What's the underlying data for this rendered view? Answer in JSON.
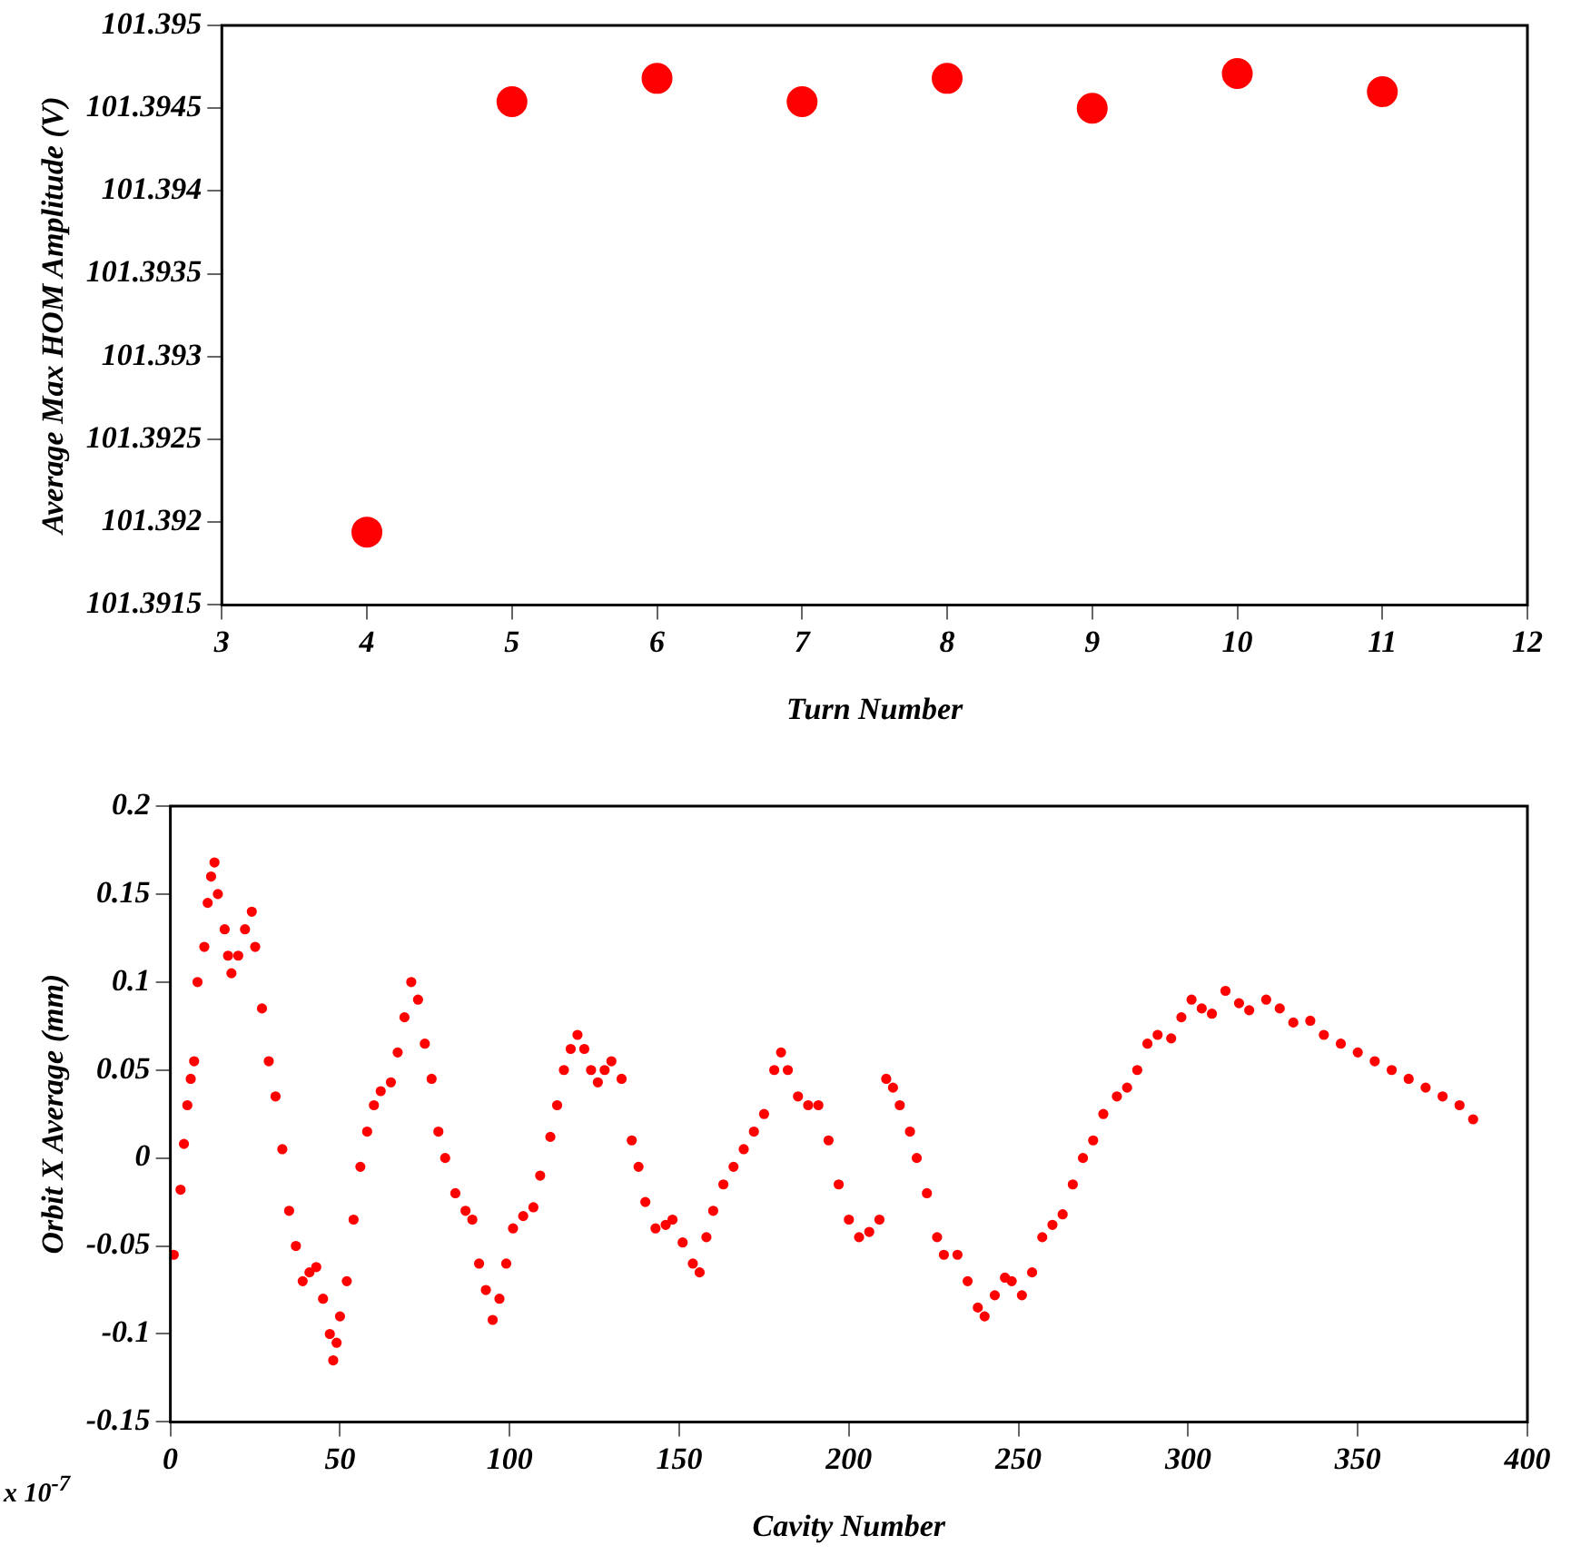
{
  "chart_data": [
    {
      "type": "scatter",
      "xlabel": "Turn Number",
      "ylabel": "Average Max HOM Amplitude (V)",
      "marker": "circle",
      "grid": false,
      "legend": false,
      "xlim": [
        3,
        12
      ],
      "xticks": [
        3,
        4,
        5,
        6,
        7,
        8,
        9,
        10,
        11,
        12
      ],
      "ylim": [
        101.3915,
        101.395
      ],
      "yticks": [
        101.3915,
        101.392,
        101.3925,
        101.393,
        101.3935,
        101.394,
        101.3945,
        101.395
      ],
      "series": [
        {
          "color": "#ff0000",
          "x": [
            4,
            5,
            6,
            7,
            8,
            9,
            10,
            11
          ],
          "values": [
            101.39194,
            101.39454,
            101.39468,
            101.39454,
            101.39468,
            101.3945,
            101.39471,
            101.3946
          ]
        }
      ]
    },
    {
      "type": "scatter",
      "xlabel": "Cavity Number",
      "ylabel": "Orbit X Average (mm)",
      "marker": "circle",
      "grid": false,
      "legend": false,
      "annotations": [
        "x 10$^{-7}$"
      ],
      "xlim": [
        0,
        400
      ],
      "xticks": [
        0,
        50,
        100,
        150,
        200,
        250,
        300,
        350,
        400
      ],
      "ylim": [
        -0.15,
        0.2
      ],
      "yticks": [
        -0.15,
        -0.1,
        -0.05,
        0,
        0.05,
        0.1,
        0.15,
        0.2
      ],
      "series": [
        {
          "color": "#ff0000",
          "x": [
            1,
            3,
            4,
            5,
            6,
            7,
            8,
            10,
            11,
            12,
            13,
            14,
            16,
            17,
            18,
            20,
            22,
            24,
            25,
            27,
            29,
            31,
            33,
            35,
            37,
            39,
            41,
            43,
            45,
            47,
            48,
            49,
            50,
            52,
            54,
            56,
            58,
            60,
            62,
            65,
            67,
            69,
            71,
            73,
            75,
            77,
            79,
            81,
            84,
            87,
            89,
            91,
            93,
            95,
            97,
            99,
            101,
            104,
            107,
            109,
            112,
            114,
            116,
            118,
            120,
            122,
            124,
            126,
            128,
            130,
            133,
            136,
            138,
            140,
            143,
            146,
            148,
            151,
            154,
            156,
            158,
            160,
            163,
            166,
            169,
            172,
            175,
            178,
            180,
            182,
            185,
            188,
            191,
            194,
            197,
            200,
            203,
            206,
            209,
            211,
            213,
            215,
            218,
            220,
            223,
            226,
            228,
            232,
            235,
            238,
            240,
            243,
            246,
            248,
            251,
            254,
            257,
            260,
            263,
            266,
            269,
            272,
            275,
            279,
            282,
            285,
            288,
            291,
            295,
            298,
            301,
            304,
            307,
            311,
            315,
            318,
            323,
            327,
            331,
            336,
            340,
            345,
            350,
            355,
            360,
            365,
            370,
            375,
            380,
            384
          ],
          "values": [
            -0.055,
            -0.018,
            0.008,
            0.03,
            0.045,
            0.055,
            0.1,
            0.12,
            0.145,
            0.16,
            0.168,
            0.15,
            0.13,
            0.115,
            0.105,
            0.115,
            0.13,
            0.14,
            0.12,
            0.085,
            0.055,
            0.035,
            0.005,
            -0.03,
            -0.05,
            -0.07,
            -0.065,
            -0.062,
            -0.08,
            -0.1,
            -0.115,
            -0.105,
            -0.09,
            -0.07,
            -0.035,
            -0.005,
            0.015,
            0.03,
            0.038,
            0.043,
            0.06,
            0.08,
            0.1,
            0.09,
            0.065,
            0.045,
            0.015,
            0,
            -0.02,
            -0.03,
            -0.035,
            -0.06,
            -0.075,
            -0.092,
            -0.08,
            -0.06,
            -0.04,
            -0.033,
            -0.028,
            -0.01,
            0.012,
            0.03,
            0.05,
            0.062,
            0.07,
            0.062,
            0.05,
            0.043,
            0.05,
            0.055,
            0.045,
            0.01,
            -0.005,
            -0.025,
            -0.04,
            -0.038,
            -0.035,
            -0.048,
            -0.06,
            -0.065,
            -0.045,
            -0.03,
            -0.015,
            -0.005,
            0.005,
            0.015,
            0.025,
            0.05,
            0.06,
            0.05,
            0.035,
            0.03,
            0.03,
            0.01,
            -0.015,
            -0.035,
            -0.045,
            -0.042,
            -0.035,
            0.045,
            0.04,
            0.03,
            0.015,
            0,
            -0.02,
            -0.045,
            -0.055,
            -0.055,
            -0.07,
            -0.085,
            -0.09,
            -0.078,
            -0.068,
            -0.07,
            -0.078,
            -0.065,
            -0.045,
            -0.038,
            -0.032,
            -0.015,
            0,
            0.01,
            0.025,
            0.035,
            0.04,
            0.05,
            0.065,
            0.07,
            0.068,
            0.08,
            0.09,
            0.085,
            0.082,
            0.095,
            0.088,
            0.084,
            0.09,
            0.085,
            0.077,
            0.078,
            0.07,
            0.065,
            0.06,
            0.055,
            0.05,
            0.045,
            0.04,
            0.035,
            0.03,
            0.022
          ]
        }
      ]
    }
  ]
}
